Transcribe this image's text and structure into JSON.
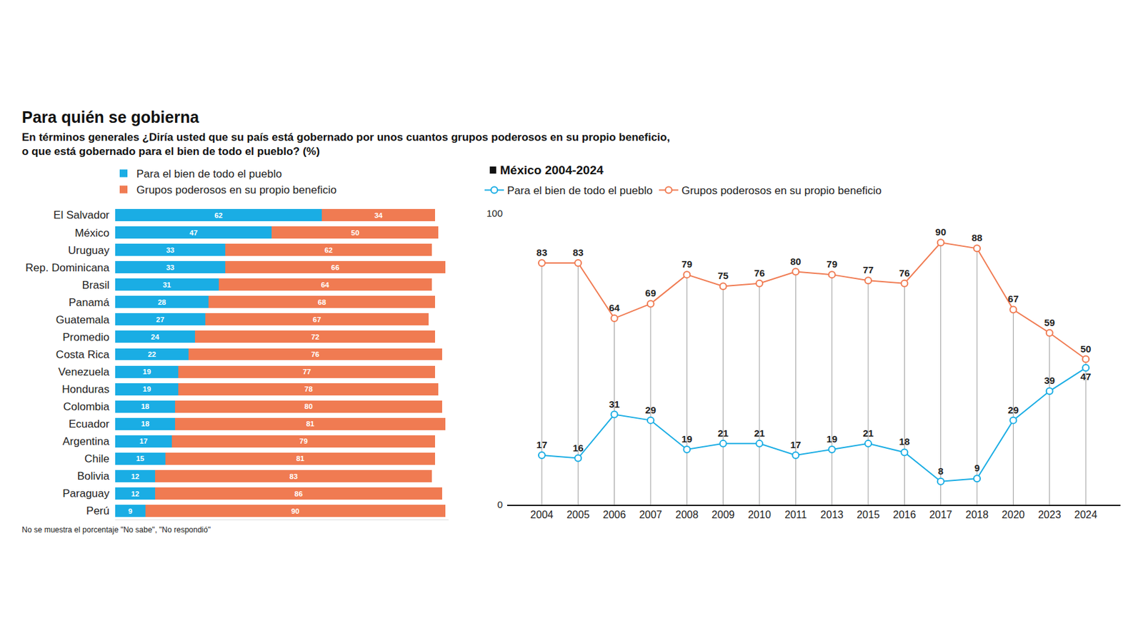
{
  "title": "Para quién se gobierna",
  "subtitle": [
    "En términos generales ¿Diría usted que su país está gobernado por unos cuantos grupos poderosos en su propio beneficio,",
    "o que está gobernado para el bien de todo el pueblo? (%)"
  ],
  "note": "No se muestra el porcentaje \"No sabe\", \"No respondió\"",
  "chart_data": [
    {
      "type": "bar",
      "orientation": "horizontal",
      "stacked": true,
      "data_labels": true,
      "tick_labels": "y",
      "legend": "top left",
      "xlim": [
        0,
        100
      ],
      "categories": [
        "El Salvador",
        "México",
        "Uruguay",
        "Rep. Dominicana",
        "Brasil",
        "Panamá",
        "Guatemala",
        "Promedio",
        "Costa Rica",
        "Venezuela",
        "Honduras",
        "Colombia",
        "Ecuador",
        "Argentina",
        "Chile",
        "Bolivia",
        "Paraguay",
        "Perú"
      ],
      "series": [
        {
          "name": "Para el bien de todo el pueblo",
          "color": "#1aade4",
          "values": [
            62,
            47,
            33,
            33,
            31,
            28,
            27,
            24,
            22,
            19,
            19,
            18,
            18,
            17,
            15,
            12,
            12,
            9
          ]
        },
        {
          "name": "Grupos poderosos en su propio beneficio",
          "color": "#f07b52",
          "values": [
            34,
            50,
            62,
            66,
            64,
            68,
            67,
            72,
            76,
            77,
            78,
            80,
            81,
            79,
            81,
            83,
            86,
            90
          ]
        }
      ]
    },
    {
      "type": "line",
      "title": "México 2004-2024",
      "data_labels": true,
      "marker": "circle",
      "legend": "top left",
      "grid": true,
      "categories": [
        "2004",
        "2005",
        "2006",
        "2007",
        "2008",
        "2009",
        "2010",
        "2011",
        "2013",
        "2015",
        "2016",
        "2017",
        "2018",
        "2020",
        "2023",
        "2024"
      ],
      "ylim": [
        0,
        100
      ],
      "yticks": [
        0,
        100
      ],
      "series": [
        {
          "name": "Para el bien de todo el pueblo",
          "color": "#1aade4",
          "values": [
            17,
            16,
            31,
            29,
            19,
            21,
            21,
            17,
            19,
            21,
            18,
            8,
            9,
            29,
            39,
            47
          ]
        },
        {
          "name": "Grupos poderosos en su propio beneficio",
          "color": "#f07b52",
          "values": [
            83,
            83,
            64,
            69,
            79,
            75,
            76,
            80,
            79,
            77,
            76,
            90,
            88,
            67,
            59,
            50
          ]
        }
      ]
    }
  ]
}
